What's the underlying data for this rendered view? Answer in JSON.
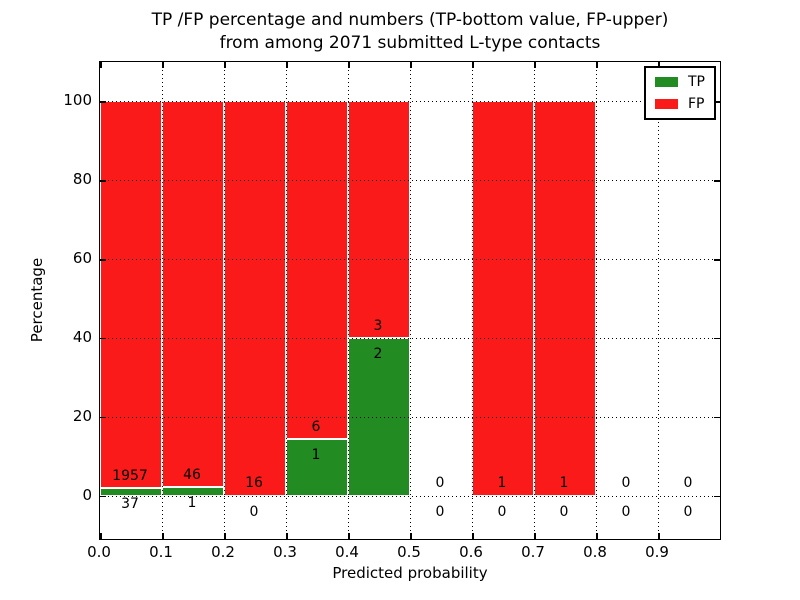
{
  "chart_data": {
    "type": "bar",
    "stacked": true,
    "title_line1": "TP /FP percentage and numbers (TP-bottom value, FP-upper)",
    "title_line2": "from among 2071 submitted L-type contacts",
    "xlabel": "Predicted probability",
    "ylabel": "Percentage",
    "total_submitted": 2071,
    "categories": [
      "0.0-0.1",
      "0.1-0.2",
      "0.2-0.3",
      "0.3-0.4",
      "0.4-0.5",
      "0.5-0.6",
      "0.6-0.7",
      "0.7-0.8",
      "0.8-0.9",
      "0.9-1.0"
    ],
    "bin_start": [
      0.0,
      0.1,
      0.2,
      0.3,
      0.4,
      0.5,
      0.6,
      0.7,
      0.8,
      0.9
    ],
    "series": [
      {
        "name": "TP",
        "color": "#228b22",
        "counts": [
          37,
          1,
          0,
          1,
          2,
          0,
          0,
          0,
          0,
          0
        ],
        "pct": [
          1.86,
          2.13,
          0,
          14.29,
          40,
          0,
          0,
          0,
          0,
          0
        ]
      },
      {
        "name": "FP",
        "color": "#fb1a1a",
        "counts": [
          1957,
          46,
          16,
          6,
          3,
          0,
          1,
          1,
          0,
          0
        ],
        "pct": [
          98.14,
          97.87,
          100,
          85.71,
          60,
          0,
          100,
          100,
          0,
          0
        ]
      }
    ],
    "bar_total_pct": [
      100,
      100,
      100,
      100,
      100,
      0,
      100,
      100,
      0,
      0
    ],
    "annotation_note": "upper number = FP count, lower number = TP count",
    "xticks": [
      "0.0",
      "0.1",
      "0.2",
      "0.3",
      "0.4",
      "0.5",
      "0.6",
      "0.7",
      "0.8",
      "0.9"
    ],
    "yticks": [
      0,
      20,
      40,
      60,
      80,
      100
    ],
    "xlim": [
      0,
      1
    ],
    "ylim": [
      -11,
      110
    ],
    "grid": "dotted",
    "legend_position": "upper right"
  }
}
